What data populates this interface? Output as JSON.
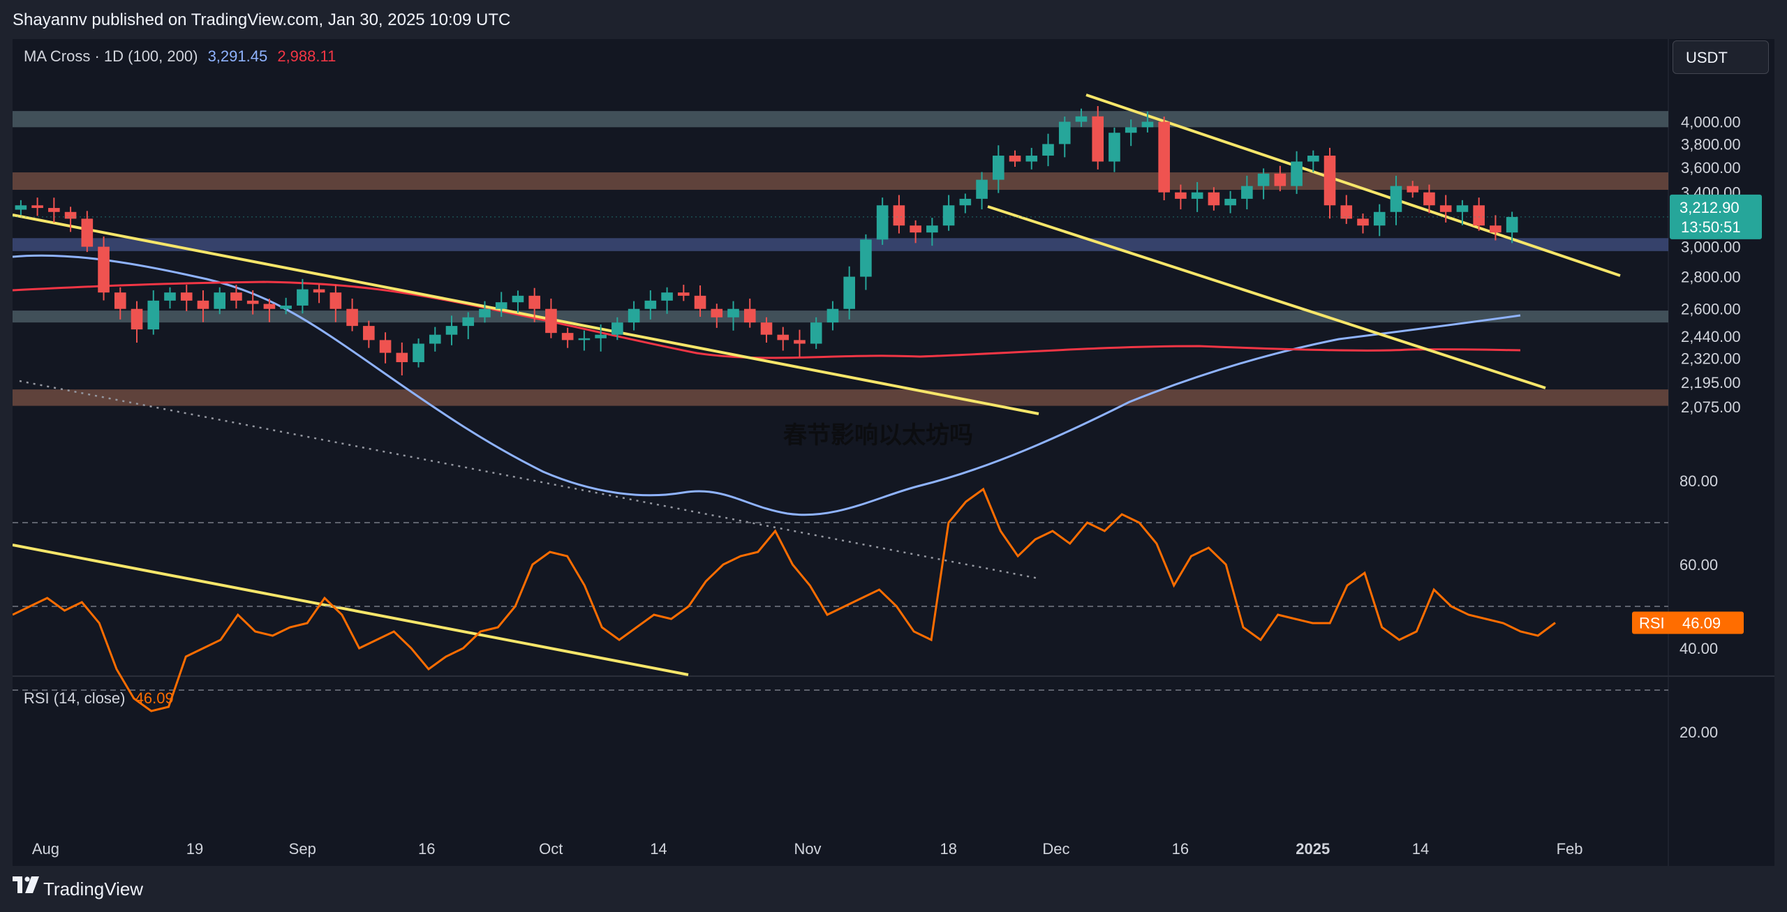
{
  "header": {
    "publisher": "Shayannv published on TradingView.com, Jan 30, 2025 10:09 UTC"
  },
  "indicator_legend": {
    "name": "MA Cross · 1D (100, 200)",
    "ma100": "3,291.45",
    "ma200": "2,988.11",
    "ma100_color": "#8fb3ff",
    "ma200_color": "#f23645"
  },
  "rsi_legend": {
    "name": "RSI (14, close)",
    "value": "46.09",
    "color": "#ff6d00"
  },
  "currency": "USDT",
  "watermark": "春节影响以太坊吗",
  "footer": {
    "brand": "TradingView"
  },
  "price_label": {
    "price": "3,212.90",
    "countdown": "13:50:51"
  },
  "rsi_label": {
    "name": "RSI",
    "value": "46.09"
  },
  "colors": {
    "up": "#26a69a",
    "down": "#ef5350",
    "trendline": "#f7e66a",
    "background": "#131722"
  },
  "chart_data": [
    {
      "type": "candlestick",
      "title": "MA Cross · 1D (100, 200)",
      "y_scale": "log",
      "ylim": [
        1980,
        4300
      ],
      "x_range": [
        "2025-07-28",
        "2025-02-05"
      ],
      "x_ticks": [
        "Aug",
        "19",
        "Sep",
        "16",
        "Oct",
        "14",
        "Nov",
        "18",
        "Dec",
        "16",
        "2025",
        "14",
        "Feb"
      ],
      "y_ticks": [
        "4,000.00",
        "3,800.00",
        "3,600.00",
        "3,400.00",
        "3,000.00",
        "2,800.00",
        "2,600.00",
        "2,440.00",
        "2,320.00",
        "2,195.00",
        "2,075.00"
      ],
      "close_path": [
        3300,
        3280,
        3250,
        3200,
        3000,
        2700,
        2600,
        2480,
        2650,
        2700,
        2650,
        2600,
        2700,
        2650,
        2630,
        2600,
        2620,
        2720,
        2700,
        2600,
        2500,
        2420,
        2350,
        2300,
        2400,
        2450,
        2500,
        2550,
        2600,
        2640,
        2680,
        2600,
        2460,
        2420,
        2430,
        2450,
        2520,
        2600,
        2650,
        2700,
        2680,
        2600,
        2550,
        2600,
        2520,
        2450,
        2420,
        2400,
        2520,
        2600,
        2800,
        3050,
        3300,
        3150,
        3100,
        3150,
        3300,
        3350,
        3500,
        3700,
        3650,
        3700,
        3800,
        4000,
        4050,
        3650,
        3900,
        3950,
        4000,
        3400,
        3350,
        3400,
        3300,
        3350,
        3450,
        3550,
        3450,
        3650,
        3700,
        3300,
        3200,
        3150,
        3250,
        3450,
        3400,
        3300,
        3250,
        3300,
        3150,
        3100,
        3212.9
      ],
      "zones": [
        {
          "range": [
            3950,
            4100
          ],
          "kind": "resistance"
        },
        {
          "range": [
            3420,
            3560
          ],
          "kind": "resistance"
        },
        {
          "range": [
            2970,
            3060
          ],
          "kind": "support"
        },
        {
          "range": [
            2520,
            2590
          ],
          "kind": "support"
        },
        {
          "range": [
            2080,
            2160
          ],
          "kind": "support"
        }
      ],
      "series": [
        {
          "name": "MA 100",
          "last": 3291.45
        },
        {
          "name": "MA 200",
          "last": 2988.11
        }
      ]
    },
    {
      "type": "line",
      "title": "RSI (14, close)",
      "ylim": [
        13,
        83
      ],
      "levels": [
        70,
        50,
        30
      ],
      "y_ticks": [
        "80.00",
        "60.00",
        "40.00",
        "20.00"
      ],
      "series": [
        {
          "name": "RSI (14, close)",
          "values": [
            48,
            50,
            52,
            49,
            51,
            46,
            35,
            28,
            25,
            26,
            38,
            40,
            42,
            48,
            44,
            43,
            45,
            46,
            52,
            48,
            40,
            42,
            44,
            40,
            35,
            38,
            40,
            44,
            45,
            50,
            60,
            63,
            62,
            55,
            45,
            42,
            45,
            48,
            47,
            50,
            56,
            60,
            62,
            63,
            68,
            60,
            55,
            48,
            50,
            52,
            54,
            50,
            44,
            42,
            70,
            75,
            78,
            68,
            62,
            66,
            68,
            65,
            70,
            68,
            72,
            70,
            65,
            55,
            62,
            64,
            60,
            45,
            42,
            48,
            47,
            46,
            46,
            55,
            58,
            45,
            42,
            44,
            54,
            50,
            48,
            47,
            46,
            44,
            43,
            46.09
          ]
        }
      ]
    }
  ]
}
